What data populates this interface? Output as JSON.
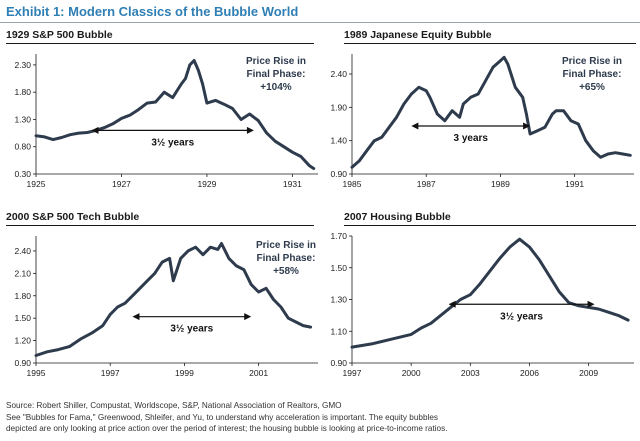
{
  "exhibit_title": "Exhibit 1: Modern Classics of the Bubble World",
  "footer": {
    "source": "Source: Robert Shiller, Compustat, Worldscope, S&P, National Association of Realtors, GMO",
    "note_line1": "See \"Bubbles for Fama,\" Greenwood, Shleifer, and Yu, to understand why acceleration is important. The equity bubbles",
    "note_line2": "depicted are only looking at price action over the period of interest; the housing bubble is looking at price-to-income ratios."
  },
  "colors": {
    "title": "#2f7fb5",
    "line": "#2e3b4d",
    "axis": "#1a1a1a",
    "annotation": "#2e3b4d"
  },
  "chart_data": [
    {
      "type": "line",
      "title": "1929 S&P 500 Bubble",
      "xlim": [
        1925,
        1931.6
      ],
      "ylim": [
        0.3,
        2.5
      ],
      "xticks": [
        1925,
        1927,
        1929,
        1931
      ],
      "xtick_labels": [
        "1925",
        "1927",
        "1929",
        "1931"
      ],
      "yticks": [
        0.3,
        0.8,
        1.3,
        1.8,
        2.3
      ],
      "ytick_labels": [
        "0.30",
        "0.80",
        "1.30",
        "1.80",
        "2.30"
      ],
      "annotation_lines": [
        "Price Rise in",
        "Final Phase:",
        "+104%"
      ],
      "arrow": {
        "from": 1926.3,
        "to": 1930.1,
        "y": 1.1,
        "label": "3½ years"
      },
      "x": [
        1925.0,
        1925.2,
        1925.4,
        1925.6,
        1925.8,
        1926.0,
        1926.2,
        1926.4,
        1926.6,
        1926.8,
        1927.0,
        1927.2,
        1927.4,
        1927.6,
        1927.8,
        1928.0,
        1928.2,
        1928.4,
        1928.5,
        1928.6,
        1928.7,
        1928.8,
        1928.9,
        1929.0,
        1929.2,
        1929.4,
        1929.6,
        1929.8,
        1930.0,
        1930.2,
        1930.4,
        1930.6,
        1930.8,
        1931.0,
        1931.2,
        1931.4,
        1931.5
      ],
      "y": [
        1.0,
        0.98,
        0.93,
        0.97,
        1.02,
        1.05,
        1.06,
        1.1,
        1.15,
        1.22,
        1.32,
        1.38,
        1.48,
        1.6,
        1.62,
        1.8,
        1.7,
        1.95,
        2.05,
        2.3,
        2.38,
        2.2,
        1.95,
        1.6,
        1.65,
        1.58,
        1.5,
        1.3,
        1.4,
        1.28,
        1.05,
        0.9,
        0.8,
        0.7,
        0.62,
        0.45,
        0.4
      ]
    },
    {
      "type": "line",
      "title": "1989 Japanese Equity Bubble",
      "xlim": [
        1985,
        1992.6
      ],
      "ylim": [
        0.9,
        2.7
      ],
      "xticks": [
        1985,
        1987,
        1989,
        1991
      ],
      "xtick_labels": [
        "1985",
        "1987",
        "1989",
        "1991"
      ],
      "yticks": [
        0.9,
        1.4,
        1.9,
        2.4
      ],
      "ytick_labels": [
        "0.90",
        "1.40",
        "1.90",
        "2.40"
      ],
      "annotation_lines": [
        "Price Rise in",
        "Final Phase:",
        "+65%"
      ],
      "arrow": {
        "from": 1986.6,
        "to": 1989.8,
        "y": 1.62,
        "label": "3 years"
      },
      "x": [
        1985.0,
        1985.2,
        1985.4,
        1985.6,
        1985.8,
        1986.0,
        1986.2,
        1986.4,
        1986.6,
        1986.8,
        1987.0,
        1987.1,
        1987.3,
        1987.5,
        1987.7,
        1987.9,
        1988.0,
        1988.2,
        1988.4,
        1988.6,
        1988.8,
        1989.0,
        1989.1,
        1989.2,
        1989.4,
        1989.6,
        1989.7,
        1989.8,
        1990.0,
        1990.2,
        1990.4,
        1990.5,
        1990.7,
        1990.9,
        1991.1,
        1991.3,
        1991.5,
        1991.7,
        1991.9,
        1992.1,
        1992.3,
        1992.5
      ],
      "y": [
        1.0,
        1.1,
        1.25,
        1.4,
        1.45,
        1.6,
        1.75,
        1.95,
        2.1,
        2.2,
        2.15,
        2.05,
        1.8,
        1.7,
        1.85,
        1.75,
        1.95,
        2.05,
        2.1,
        2.3,
        2.5,
        2.6,
        2.65,
        2.55,
        2.2,
        2.05,
        1.8,
        1.5,
        1.55,
        1.6,
        1.8,
        1.85,
        1.85,
        1.7,
        1.65,
        1.4,
        1.25,
        1.15,
        1.2,
        1.22,
        1.2,
        1.18
      ]
    },
    {
      "type": "line",
      "title": "2000 S&P 500 Tech Bubble",
      "xlim": [
        1995,
        2002.6
      ],
      "ylim": [
        0.9,
        2.6
      ],
      "xticks": [
        1995,
        1997,
        1999,
        2001
      ],
      "xtick_labels": [
        "1995",
        "1997",
        "1999",
        "2001"
      ],
      "yticks": [
        0.9,
        1.2,
        1.5,
        1.8,
        2.1,
        2.4
      ],
      "ytick_labels": [
        "0.90",
        "1.20",
        "1.50",
        "1.80",
        "2.10",
        "2.40"
      ],
      "annotation_lines": [
        "Price Rise in",
        "Final Phase:",
        "+58%"
      ],
      "arrow": {
        "from": 1997.6,
        "to": 2000.8,
        "y": 1.52,
        "label": "3½ years"
      },
      "x": [
        1995.0,
        1995.3,
        1995.6,
        1995.9,
        1996.2,
        1996.5,
        1996.8,
        1997.0,
        1997.2,
        1997.4,
        1997.6,
        1997.8,
        1998.0,
        1998.2,
        1998.4,
        1998.6,
        1998.7,
        1998.9,
        1999.1,
        1999.3,
        1999.5,
        1999.7,
        1999.9,
        2000.0,
        2000.2,
        2000.4,
        2000.6,
        2000.8,
        2001.0,
        2001.2,
        2001.4,
        2001.6,
        2001.8,
        2002.0,
        2002.2,
        2002.4
      ],
      "y": [
        1.0,
        1.05,
        1.08,
        1.12,
        1.22,
        1.3,
        1.4,
        1.55,
        1.65,
        1.7,
        1.8,
        1.9,
        2.0,
        2.1,
        2.25,
        2.3,
        2.0,
        2.3,
        2.4,
        2.45,
        2.35,
        2.45,
        2.42,
        2.5,
        2.3,
        2.2,
        2.15,
        1.95,
        1.85,
        1.9,
        1.75,
        1.65,
        1.5,
        1.45,
        1.4,
        1.38
      ]
    },
    {
      "type": "line",
      "title": "2007 Housing Bubble",
      "xlim": [
        1997,
        2011.3
      ],
      "ylim": [
        0.9,
        1.7
      ],
      "xticks": [
        1997,
        2000,
        2003,
        2006,
        2009
      ],
      "xtick_labels": [
        "1997",
        "2000",
        "2003",
        "2006",
        "2009"
      ],
      "yticks": [
        0.9,
        1.1,
        1.3,
        1.5,
        1.7
      ],
      "ytick_labels": [
        "0.90",
        "1.10",
        "1.30",
        "1.50",
        "1.70"
      ],
      "annotation_lines": [],
      "arrow": {
        "from": 2001.9,
        "to": 2009.3,
        "y": 1.27,
        "label": "3½ years"
      },
      "x": [
        1997.0,
        1998.0,
        1999.0,
        2000.0,
        2000.5,
        2001.0,
        2001.5,
        2002.0,
        2002.5,
        2003.0,
        2003.5,
        2004.0,
        2004.5,
        2005.0,
        2005.5,
        2006.0,
        2006.5,
        2007.0,
        2007.5,
        2008.0,
        2008.5,
        2009.0,
        2009.5,
        2010.0,
        2010.5,
        2011.0
      ],
      "y": [
        1.0,
        1.02,
        1.05,
        1.08,
        1.12,
        1.15,
        1.2,
        1.25,
        1.3,
        1.33,
        1.4,
        1.48,
        1.56,
        1.63,
        1.68,
        1.63,
        1.55,
        1.45,
        1.35,
        1.28,
        1.26,
        1.25,
        1.24,
        1.22,
        1.2,
        1.17
      ]
    }
  ]
}
